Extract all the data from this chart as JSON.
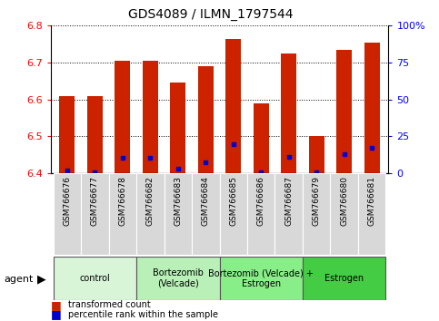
{
  "title": "GDS4089 / ILMN_1797544",
  "samples": [
    "GSM766676",
    "GSM766677",
    "GSM766678",
    "GSM766682",
    "GSM766683",
    "GSM766684",
    "GSM766685",
    "GSM766686",
    "GSM766687",
    "GSM766679",
    "GSM766680",
    "GSM766681"
  ],
  "bar_values": [
    6.61,
    6.61,
    6.705,
    6.705,
    6.645,
    6.69,
    6.765,
    6.59,
    6.725,
    6.5,
    6.735,
    6.755
  ],
  "blue_dot_values": [
    6.408,
    6.403,
    6.443,
    6.443,
    6.413,
    6.43,
    6.48,
    6.403,
    6.445,
    6.402,
    6.452,
    6.468
  ],
  "ylim": [
    6.4,
    6.8
  ],
  "yticks_left": [
    6.4,
    6.5,
    6.6,
    6.7,
    6.8
  ],
  "yticks_right": [
    0,
    25,
    50,
    75,
    100
  ],
  "groups": [
    {
      "label": "control",
      "start": 0,
      "end": 3,
      "color": "#d8f5d8"
    },
    {
      "label": "Bortezomib\n(Velcade)",
      "start": 3,
      "end": 6,
      "color": "#b8f0b8"
    },
    {
      "label": "Bortezomib (Velcade) +\nEstrogen",
      "start": 6,
      "end": 9,
      "color": "#88ee88"
    },
    {
      "label": "Estrogen",
      "start": 9,
      "end": 12,
      "color": "#44cc44"
    }
  ],
  "bar_color": "#cc2200",
  "blue_dot_color": "#0000cc",
  "base_value": 6.4,
  "legend_items": [
    {
      "label": "transformed count",
      "color": "#cc2200"
    },
    {
      "label": "percentile rank within the sample",
      "color": "#0000cc"
    }
  ],
  "agent_label": "agent",
  "figsize": [
    4.83,
    3.54
  ],
  "dpi": 100
}
